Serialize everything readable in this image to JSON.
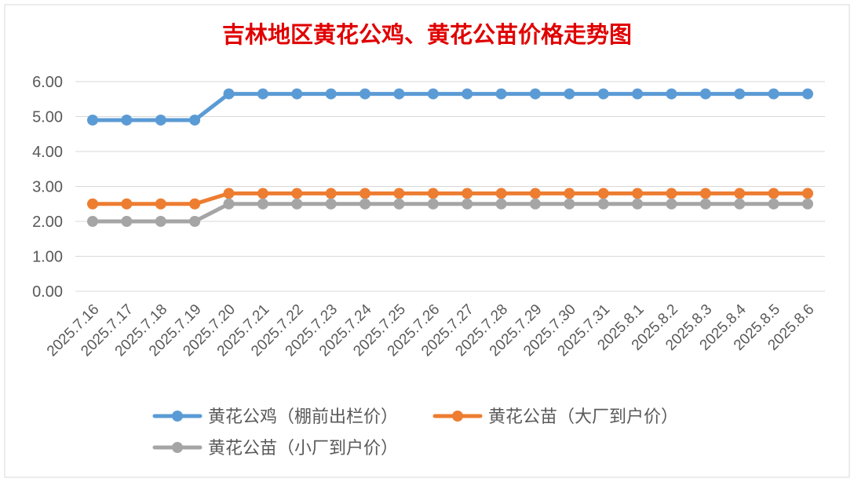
{
  "chart_data": {
    "type": "line",
    "title": "吉林地区黄花公鸡、黄花公苗价格走势图",
    "xlabel": "",
    "ylabel": "",
    "categories": [
      "2025.7.16",
      "2025.7.17",
      "2025.7.18",
      "2025.7.19",
      "2025.7.20",
      "2025.7.21",
      "2025.7.22",
      "2025.7.23",
      "2025.7.24",
      "2025.7.25",
      "2025.7.26",
      "2025.7.27",
      "2025.7.28",
      "2025.7.29",
      "2025.7.30",
      "2025.7.31",
      "2025.8.1",
      "2025.8.2",
      "2025.8.3",
      "2025.8.4",
      "2025.8.5",
      "2025.8.6"
    ],
    "ylim": [
      0,
      6
    ],
    "yticks": [
      "0.00",
      "1.00",
      "2.00",
      "3.00",
      "4.00",
      "5.00",
      "6.00"
    ],
    "grid": true,
    "legend_position": "bottom",
    "series": [
      {
        "name": "黄花公鸡（棚前出栏价）",
        "color": "#5b9bd5",
        "values": [
          4.9,
          4.9,
          4.9,
          4.9,
          5.65,
          5.65,
          5.65,
          5.65,
          5.65,
          5.65,
          5.65,
          5.65,
          5.65,
          5.65,
          5.65,
          5.65,
          5.65,
          5.65,
          5.65,
          5.65,
          5.65,
          5.65
        ]
      },
      {
        "name": "黄花公苗（大厂到户价）",
        "color": "#ed7d31",
        "values": [
          2.5,
          2.5,
          2.5,
          2.5,
          2.8,
          2.8,
          2.8,
          2.8,
          2.8,
          2.8,
          2.8,
          2.8,
          2.8,
          2.8,
          2.8,
          2.8,
          2.8,
          2.8,
          2.8,
          2.8,
          2.8,
          2.8
        ]
      },
      {
        "name": "黄花公苗（小厂到户价）",
        "color": "#a5a5a5",
        "values": [
          2.0,
          2.0,
          2.0,
          2.0,
          2.5,
          2.5,
          2.5,
          2.5,
          2.5,
          2.5,
          2.5,
          2.5,
          2.5,
          2.5,
          2.5,
          2.5,
          2.5,
          2.5,
          2.5,
          2.5,
          2.5,
          2.5
        ]
      }
    ],
    "title_color": "#e00000"
  }
}
